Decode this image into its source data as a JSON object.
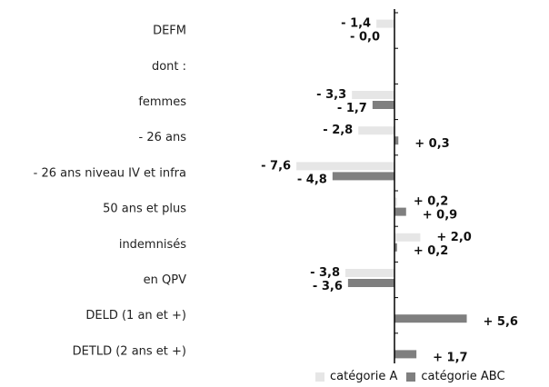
{
  "chart_data": {
    "type": "bar",
    "orientation": "horizontal",
    "categories": [
      "DEFM",
      "dont :",
      "femmes",
      "- 26 ans",
      "- 26 ans niveau IV et infra",
      "50 ans et plus",
      "indemnisés",
      "en QPV",
      "DELD (1 an et +)",
      "DETLD (2 ans et +)"
    ],
    "series": [
      {
        "name": "catégorie A",
        "color": "#e6e6e6",
        "values": [
          -1.4,
          null,
          -3.3,
          -2.8,
          -7.6,
          0.2,
          2.0,
          -3.8,
          null,
          null
        ],
        "labels": [
          "- 1,4",
          "",
          "- 3,3",
          "- 2,8",
          "- 7,6",
          "+ 0,2",
          "+ 2,0",
          "- 3,8",
          "",
          ""
        ]
      },
      {
        "name": "catégorie ABC",
        "color": "#7f7f7f",
        "values": [
          0.0,
          null,
          -1.7,
          0.3,
          -4.8,
          0.9,
          0.2,
          -3.6,
          5.6,
          1.7
        ],
        "labels": [
          "- 0,0",
          "",
          "- 1,7",
          "+ 0,3",
          "- 4,8",
          "+ 0,9",
          "+ 0,2",
          "- 3,6",
          "+ 5,6",
          "+ 1,7"
        ]
      }
    ],
    "xlim": [
      -7.6,
      5.6
    ],
    "grid": false,
    "legend_position": "bottom"
  }
}
